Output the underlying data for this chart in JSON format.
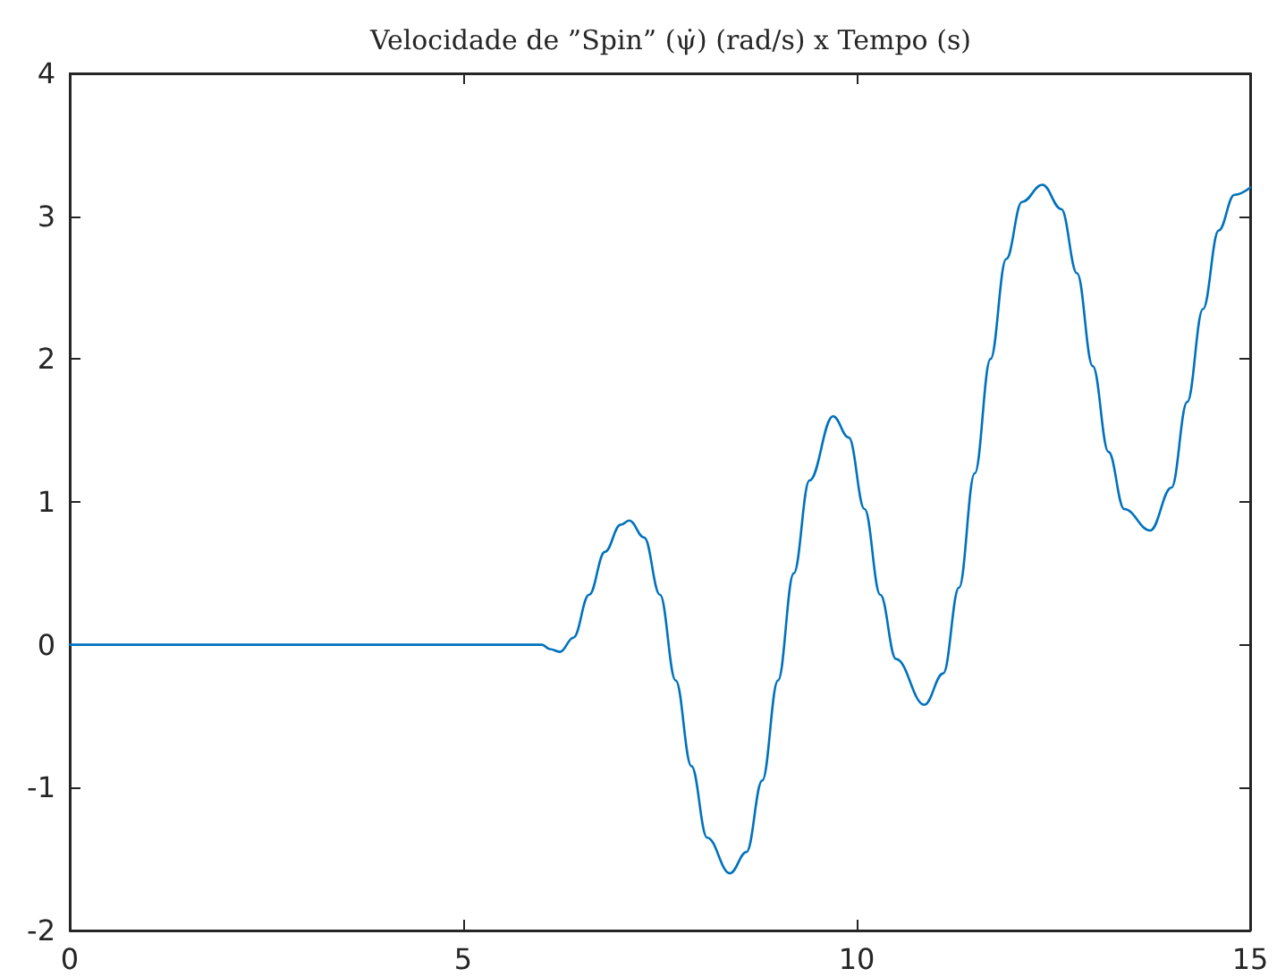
{
  "chart_data": {
    "type": "line",
    "title": "Velocidade de ”Spin” (ψ̇) (rad/s) x Tempo (s)",
    "series": [
      {
        "color": "#0072bd",
        "x": [
          0,
          6.0,
          6.1,
          6.23,
          6.4,
          6.6,
          6.8,
          7.0,
          7.11,
          7.3,
          7.5,
          7.7,
          7.9,
          8.1,
          8.39,
          8.6,
          8.8,
          9.0,
          9.2,
          9.4,
          9.7,
          9.9,
          10.1,
          10.3,
          10.5,
          10.86,
          11.1,
          11.3,
          11.5,
          11.7,
          11.9,
          12.1,
          12.36,
          12.6,
          12.8,
          13.0,
          13.2,
          13.4,
          13.73,
          14.0,
          14.2,
          14.4,
          14.6,
          14.8,
          15
        ],
        "values": [
          0,
          0,
          -0.03,
          -0.05,
          0.05,
          0.35,
          0.65,
          0.84,
          0.87,
          0.75,
          0.35,
          -0.25,
          -0.85,
          -1.35,
          -1.6,
          -1.45,
          -0.95,
          -0.25,
          0.5,
          1.15,
          1.6,
          1.45,
          0.95,
          0.35,
          -0.1,
          -0.42,
          -0.2,
          0.4,
          1.2,
          2.0,
          2.7,
          3.1,
          3.22,
          3.05,
          2.6,
          1.95,
          1.35,
          0.95,
          0.8,
          1.1,
          1.7,
          2.35,
          2.9,
          3.15,
          3.2
        ]
      }
    ],
    "xlim": [
      0,
      15
    ],
    "xticks": [
      0,
      5,
      10,
      15
    ],
    "ylim": [
      -2,
      4
    ],
    "yticks": [
      -2,
      -1,
      0,
      1,
      2,
      3,
      4
    ],
    "marker": "none",
    "line_style": "solid"
  }
}
